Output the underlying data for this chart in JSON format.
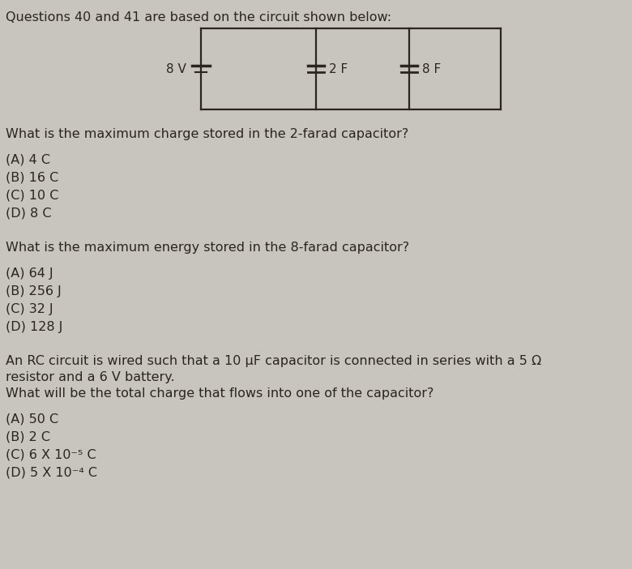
{
  "background_color": "#c8c5be",
  "title_text": "Questions 40 and 41 are based on the circuit shown below:",
  "title_fontsize": 11.5,
  "body_fontsize": 11.5,
  "q1_text": "What is the maximum charge stored in the 2-farad capacitor?",
  "q1_choices": [
    "(A) 4 C",
    "(B) 16 C",
    "(C) 10 C",
    "(D) 8 C"
  ],
  "q2_text": "What is the maximum energy stored in the 8-farad capacitor?",
  "q2_choices": [
    "(A) 64 J",
    "(B) 256 J",
    "(C) 32 J",
    "(D) 128 J"
  ],
  "q3_text_line1": "An RC circuit is wired such that a 10 μF capacitor is connected in series with a 5 Ω",
  "q3_text_line2": "resistor and a 6 V battery.",
  "q3_text_line3": "What will be the total charge that flows into one of the capacitor?",
  "q3_choices": [
    "(A) 50 C",
    "(B) 2 C",
    "(C) 6 X 10⁻⁵ C",
    "(D) 5 X 10⁻⁴ C"
  ],
  "circuit_label_battery": "8 V",
  "circuit_label_cap1": "2 F",
  "circuit_label_cap2": "8 F",
  "text_color": "#2a2520"
}
